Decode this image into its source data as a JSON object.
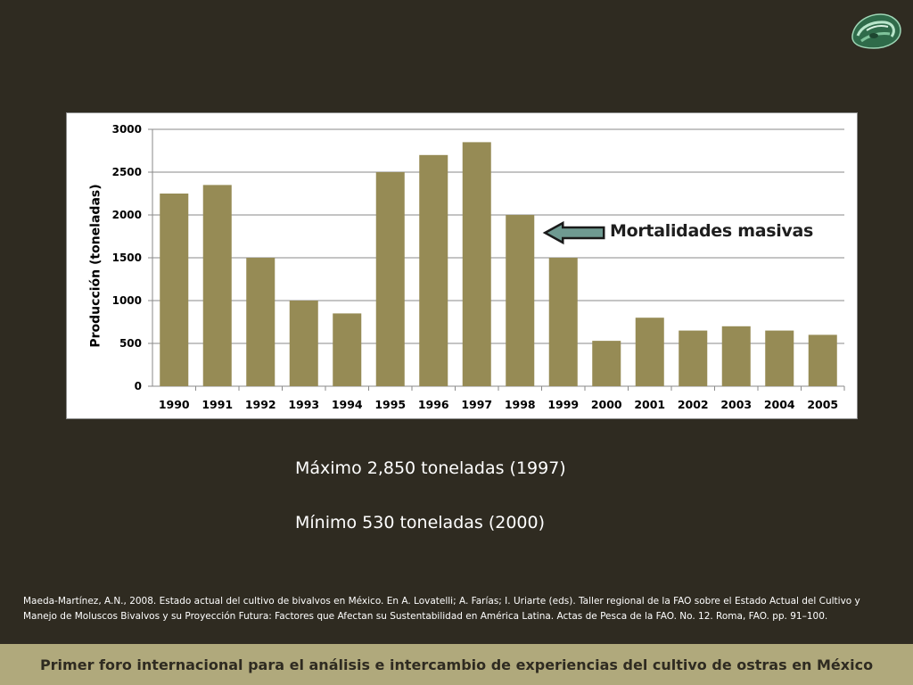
{
  "chart_data": {
    "type": "bar",
    "categories": [
      "1990",
      "1991",
      "1992",
      "1993",
      "1994",
      "1995",
      "1996",
      "1997",
      "1998",
      "1999",
      "2000",
      "2001",
      "2002",
      "2003",
      "2004",
      "2005"
    ],
    "values": [
      2250,
      2350,
      1500,
      1000,
      850,
      2500,
      2700,
      2850,
      2000,
      1500,
      530,
      800,
      650,
      700,
      650,
      600
    ],
    "ylabel": "Producción (toneladas)",
    "ylim": [
      0,
      3000
    ],
    "yticks": [
      0,
      500,
      1000,
      1500,
      2000,
      2500,
      3000
    ],
    "grid": true,
    "bar_color": "#968b55",
    "annotations": [
      {
        "text": "Mortalidades masivas",
        "points_to": "1998",
        "arrow_color": "#6f9a91"
      }
    ]
  },
  "stats": {
    "max": "Máximo 2,850 toneladas (1997)",
    "min": "Mínimo 530 toneladas (2000)"
  },
  "citation": "Maeda-Martínez, A.N., 2008. Estado actual del cultivo de bivalvos en México. En A. Lovatelli; A. Farías; I. Uriarte (eds). Taller regional de la FAO sobre el Estado Actual del Cultivo y Manejo de Moluscos Bivalvos y su Proyección Futura: Factores que Afectan su Sustentabilidad en América Latina. Actas de Pesca de la FAO. No. 12. Roma, FAO. pp. 91–100.",
  "footer": "Primer foro internacional para el análisis e intercambio de experiencias del cultivo de ostras en México",
  "logo": {
    "icon": "oyster-logo-icon",
    "colors": [
      "#2f6b4a",
      "#7fc39b"
    ]
  }
}
